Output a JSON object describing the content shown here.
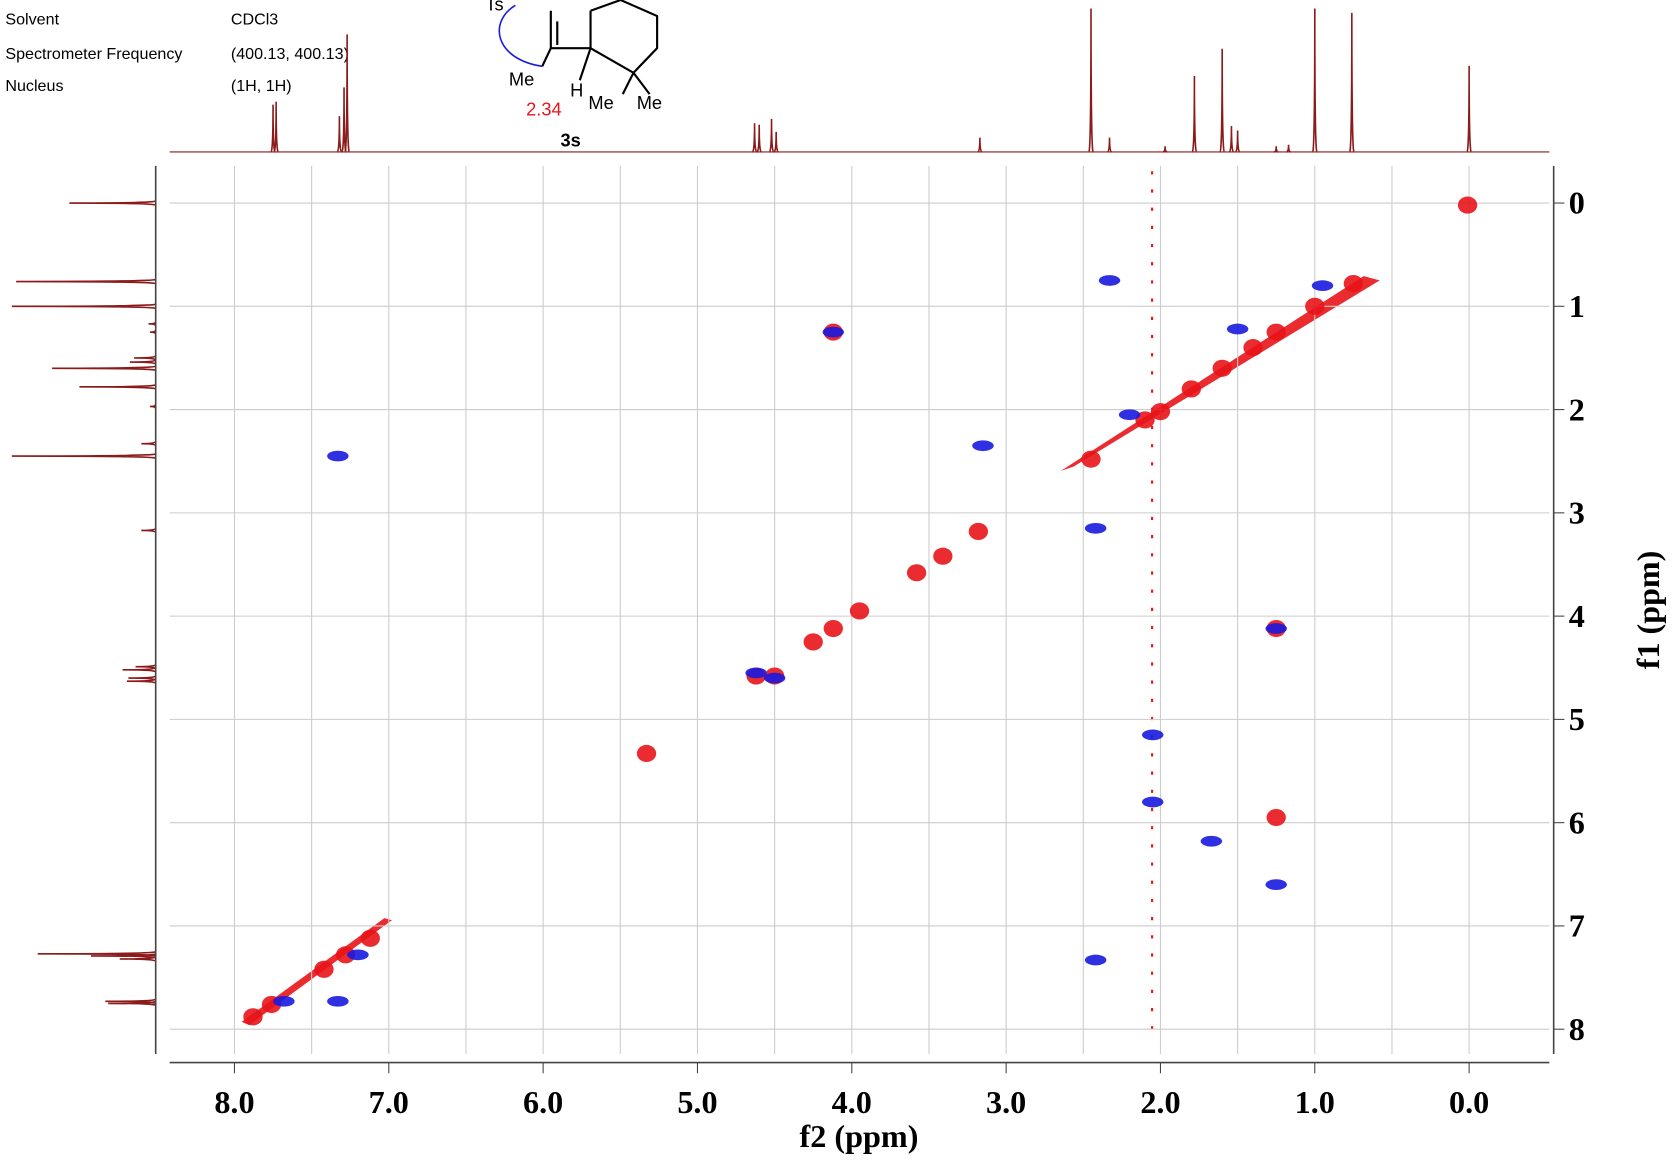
{
  "chart_data": {
    "type": "nmr2d",
    "parameters": [
      [
        "Solvent",
        "CDCl3"
      ],
      [
        "Spectrometer Frequency",
        "(400.13, 400.13)"
      ],
      [
        "Nucleus",
        "(1H, 1H)"
      ]
    ],
    "molecule": {
      "group": "Ts",
      "methyl": "Me",
      "hydrogen": "H",
      "gem_methyl_1": "Me",
      "gem_methyl_2": "Me",
      "shift": "2.34",
      "compound": "3s"
    },
    "xlabel": "f2 (ppm)",
    "ylabel": "f1 (ppm)",
    "xlim": [
      8.42,
      -0.52
    ],
    "ylim": [
      -0.36,
      8.24
    ],
    "xticks": [
      {
        "value": 8,
        "label": "8.0"
      },
      {
        "value": 7,
        "label": "7.0"
      },
      {
        "value": 6,
        "label": "6.0"
      },
      {
        "value": 5,
        "label": "5.0"
      },
      {
        "value": 4,
        "label": "4.0"
      },
      {
        "value": 3,
        "label": "3.0"
      },
      {
        "value": 2,
        "label": "2.0"
      },
      {
        "value": 1,
        "label": "1.0"
      },
      {
        "value": 0,
        "label": "0.0"
      }
    ],
    "xgrid": [
      8,
      7.5,
      7,
      6.5,
      6,
      5.5,
      5,
      4.5,
      4,
      3.5,
      3,
      2.5,
      2,
      1.5,
      1,
      0.5,
      0
    ],
    "yticks": [
      0,
      1,
      2,
      3,
      4,
      5,
      6,
      7,
      8
    ],
    "projection": {
      "x": [
        7.75,
        7.73,
        7.32,
        7.29,
        7.27,
        4.63,
        4.6,
        4.52,
        4.49,
        3.17,
        2.45,
        2.33,
        1.97,
        1.78,
        1.6,
        1.54,
        1.5,
        1.25,
        1.17,
        1.0,
        0.76,
        0.0
      ],
      "heights": [
        0.33,
        0.35,
        0.25,
        0.45,
        0.82,
        0.2,
        0.19,
        0.23,
        0.14,
        0.1,
        1.0,
        0.1,
        0.04,
        0.53,
        0.72,
        0.18,
        0.15,
        0.04,
        0.05,
        1.0,
        0.97,
        0.6
      ],
      "color": "#8b1a1a"
    },
    "series": [
      {
        "color": "#e8141a",
        "x": [
          7.88,
          7.76,
          7.42,
          7.28,
          7.12,
          4.62,
          4.5,
          4.25,
          4.12,
          3.95,
          3.58,
          3.41,
          3.18,
          5.33,
          2.45,
          2.1,
          2.0,
          1.8,
          1.6,
          1.4,
          1.25,
          1.0,
          0.75,
          0.01,
          4.12,
          1.25,
          1.25
        ],
        "y": [
          7.88,
          7.76,
          7.42,
          7.28,
          7.12,
          4.58,
          4.58,
          4.25,
          4.12,
          3.95,
          3.58,
          3.42,
          3.18,
          5.33,
          2.48,
          2.1,
          2.02,
          1.8,
          1.6,
          1.4,
          1.25,
          1.0,
          0.78,
          0.02,
          1.25,
          4.12,
          5.95
        ]
      },
      {
        "color": "#1a1ae0",
        "x": [
          4.12,
          1.25,
          4.62,
          4.5,
          7.68,
          7.2,
          1.5,
          2.2,
          0.95,
          2.05,
          2.05,
          1.25,
          7.33,
          3.15,
          2.42,
          2.33,
          1.67,
          2.42,
          7.33
        ],
        "y": [
          1.25,
          4.12,
          4.55,
          4.6,
          7.73,
          7.28,
          1.22,
          2.05,
          0.8,
          5.15,
          5.8,
          6.6,
          2.45,
          2.35,
          3.15,
          0.75,
          6.18,
          7.33,
          7.73
        ]
      }
    ]
  }
}
